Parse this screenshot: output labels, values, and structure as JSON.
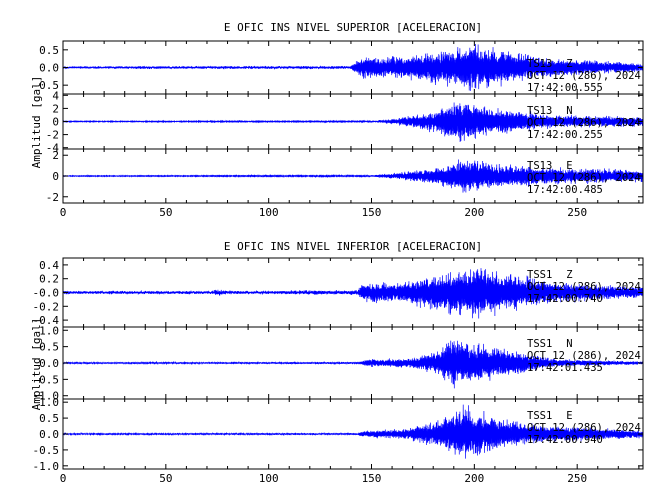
{
  "colors": {
    "trace": "#0000ff",
    "axis": "#000000",
    "background": "#ffffff"
  },
  "chart_data": [
    {
      "type": "line",
      "title": "E OFIC INS NIVEL SUPERIOR [ACELERACION]",
      "ylabel": "Amplitud [gal]",
      "xlim": [
        0,
        282
      ],
      "xticks": [
        0,
        50,
        100,
        150,
        200,
        250
      ],
      "series": [
        {
          "name": "TS13",
          "component": "Z",
          "date": "OCT 12 (286), 2024",
          "time": "17:42:00.555",
          "ylim": [
            -0.75,
            0.75
          ],
          "yticks": [
            -0.5,
            0.0,
            0.5
          ],
          "ytick_labels": [
            "-0.5",
            "0.0",
            "0.5"
          ],
          "noise": 0.03,
          "envelope": [
            [
              0,
              0.03
            ],
            [
              140,
              0.04
            ],
            [
              146,
              0.35
            ],
            [
              160,
              0.3
            ],
            [
              185,
              0.5
            ],
            [
              200,
              0.7
            ],
            [
              215,
              0.5
            ],
            [
              240,
              0.25
            ],
            [
              282,
              0.12
            ]
          ]
        },
        {
          "name": "TS13",
          "component": "N",
          "date": "OCT 12 (286), 2024",
          "time": "17:42:00.255",
          "ylim": [
            -4.2,
            4.2
          ],
          "yticks": [
            -4,
            -2,
            0,
            2,
            4
          ],
          "ytick_labels": [
            "-4",
            "-2",
            "0",
            "2",
            "4"
          ],
          "noise": 0.05,
          "envelope": [
            [
              0,
              0.05
            ],
            [
              148,
              0.08
            ],
            [
              160,
              0.4
            ],
            [
              180,
              1.6
            ],
            [
              195,
              3.5
            ],
            [
              210,
              2.0
            ],
            [
              240,
              1.0
            ],
            [
              282,
              0.8
            ]
          ]
        },
        {
          "name": "TS13",
          "component": "E",
          "date": "OCT 12 (286), 2024",
          "time": "17:42:00.485",
          "ylim": [
            -2.6,
            2.6
          ],
          "yticks": [
            -2,
            0,
            2
          ],
          "ytick_labels": [
            "-2",
            "0",
            "2"
          ],
          "noise": 0.03,
          "envelope": [
            [
              0,
              0.03
            ],
            [
              148,
              0.06
            ],
            [
              160,
              0.3
            ],
            [
              180,
              0.8
            ],
            [
              195,
              1.8
            ],
            [
              210,
              1.2
            ],
            [
              240,
              0.8
            ],
            [
              282,
              0.6
            ]
          ]
        }
      ]
    },
    {
      "type": "line",
      "title": "E OFIC INS NIVEL INFERIOR [ACELERACION]",
      "ylabel": "Amplitud [gal]",
      "xlim": [
        0,
        282
      ],
      "xticks": [
        0,
        50,
        100,
        150,
        200,
        250
      ],
      "series": [
        {
          "name": "TSS1",
          "component": "Z",
          "date": "OCT 12 (286), 2024",
          "time": "17:42:00.740",
          "ylim": [
            -0.5,
            0.5
          ],
          "yticks": [
            -0.4,
            -0.2,
            0.0,
            0.2,
            0.4
          ],
          "ytick_labels": [
            "-0.4",
            "-0.2",
            "-0.0",
            "0.2",
            "0.4"
          ],
          "noise": 0.02,
          "envelope": [
            [
              0,
              0.02
            ],
            [
              72,
              0.02
            ],
            [
              76,
              0.05
            ],
            [
              80,
              0.02
            ],
            [
              143,
              0.03
            ],
            [
              146,
              0.15
            ],
            [
              165,
              0.15
            ],
            [
              185,
              0.3
            ],
            [
              200,
              0.42
            ],
            [
              215,
              0.3
            ],
            [
              240,
              0.15
            ],
            [
              282,
              0.08
            ]
          ]
        },
        {
          "name": "TSS1",
          "component": "N",
          "date": "OCT 12 (286), 2024",
          "time": "17:42:01.435",
          "ylim": [
            -1.1,
            1.1
          ],
          "yticks": [
            -1.0,
            -0.5,
            0.0,
            0.5,
            1.0
          ],
          "ytick_labels": [
            "-1.0",
            "-0.5",
            "0.0",
            "0.5",
            "1.0"
          ],
          "noise": 0.02,
          "envelope": [
            [
              0,
              0.02
            ],
            [
              143,
              0.03
            ],
            [
              147,
              0.12
            ],
            [
              170,
              0.15
            ],
            [
              183,
              0.4
            ],
            [
              190,
              0.85
            ],
            [
              200,
              0.6
            ],
            [
              215,
              0.45
            ],
            [
              240,
              0.12
            ],
            [
              282,
              0.05
            ]
          ]
        },
        {
          "name": "TSS1",
          "component": "E",
          "date": "OCT 12 (286), 2024",
          "time": "17:42:00.940",
          "ylim": [
            -1.1,
            1.1
          ],
          "yticks": [
            -1.0,
            -0.5,
            0.0,
            0.5,
            1.0
          ],
          "ytick_labels": [
            "-1.0",
            "-0.5",
            "0.0",
            "0.5",
            "1.0"
          ],
          "noise": 0.02,
          "envelope": [
            [
              0,
              0.02
            ],
            [
              143,
              0.03
            ],
            [
              147,
              0.12
            ],
            [
              165,
              0.15
            ],
            [
              180,
              0.4
            ],
            [
              195,
              0.9
            ],
            [
              210,
              0.55
            ],
            [
              230,
              0.3
            ],
            [
              282,
              0.12
            ]
          ]
        }
      ]
    }
  ]
}
